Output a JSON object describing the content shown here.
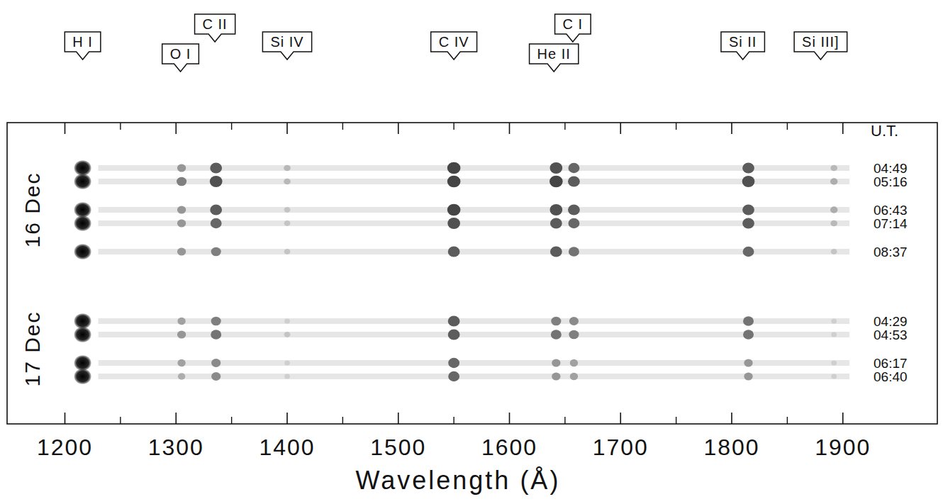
{
  "chart_data": {
    "type": "spectra",
    "x_label": "Wavelength (Å)",
    "xlim": [
      1148,
      1985
    ],
    "xticks": [
      1200,
      1300,
      1400,
      1500,
      1600,
      1700,
      1800,
      1900
    ],
    "x": [
      1216,
      1305,
      1336,
      1400,
      1550,
      1642,
      1658,
      1815,
      1892
    ],
    "intensity_range": [
      0,
      100
    ],
    "time_header": "U.T.",
    "annotations": [
      {
        "text": "H I",
        "x": 1216
      },
      {
        "text": "O I",
        "x": 1304
      },
      {
        "text": "C II",
        "x": 1335
      },
      {
        "text": "Si IV",
        "x": 1400
      },
      {
        "text": "C IV",
        "x": 1550
      },
      {
        "text": "He II",
        "x": 1640
      },
      {
        "text": "C I",
        "x": 1657
      },
      {
        "text": "Si II",
        "x": 1810
      },
      {
        "text": "Si III]",
        "x": 1880
      }
    ],
    "groups": [
      {
        "label": "16 Dec",
        "sets": [
          [
            {
              "name": "04:49",
              "values": [
                100,
                35,
                60,
                20,
                70,
                65,
                55,
                60,
                20
              ]
            },
            {
              "name": "05:16",
              "values": [
                100,
                45,
                65,
                20,
                70,
                70,
                60,
                65,
                25
              ]
            }
          ],
          [
            {
              "name": "06:43",
              "values": [
                100,
                35,
                60,
                15,
                70,
                65,
                60,
                60,
                25
              ]
            },
            {
              "name": "07:14",
              "values": [
                100,
                35,
                55,
                15,
                65,
                60,
                55,
                60,
                20
              ]
            }
          ],
          [
            {
              "name": "08:37",
              "values": [
                100,
                35,
                45,
                15,
                60,
                60,
                50,
                55,
                15
              ]
            }
          ]
        ]
      },
      {
        "label": "17 Dec",
        "sets": [
          [
            {
              "name": "04:29",
              "values": [
                100,
                30,
                45,
                10,
                60,
                45,
                40,
                50,
                10
              ]
            },
            {
              "name": "04:53",
              "values": [
                100,
                35,
                50,
                15,
                60,
                50,
                45,
                50,
                10
              ]
            }
          ],
          [
            {
              "name": "06:17",
              "values": [
                100,
                30,
                40,
                10,
                55,
                35,
                30,
                35,
                10
              ]
            },
            {
              "name": "06:40",
              "values": [
                100,
                25,
                40,
                10,
                55,
                35,
                30,
                35,
                10
              ]
            }
          ]
        ]
      }
    ]
  }
}
